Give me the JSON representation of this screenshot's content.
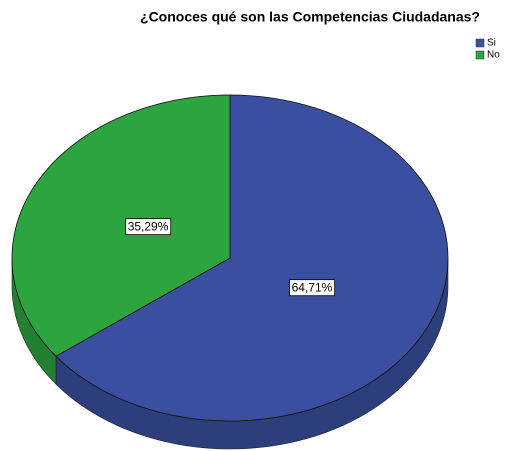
{
  "chart_data": {
    "type": "pie",
    "title": "¿Conoces qué son las Competencias Ciudadanas?",
    "categories": [
      "Si",
      "No"
    ],
    "values": [
      64.71,
      35.29
    ],
    "value_labels": [
      "64,71%",
      "35,29%"
    ],
    "colors": [
      "#3a4f9f",
      "#2ca43f"
    ],
    "legend": "top-right"
  }
}
